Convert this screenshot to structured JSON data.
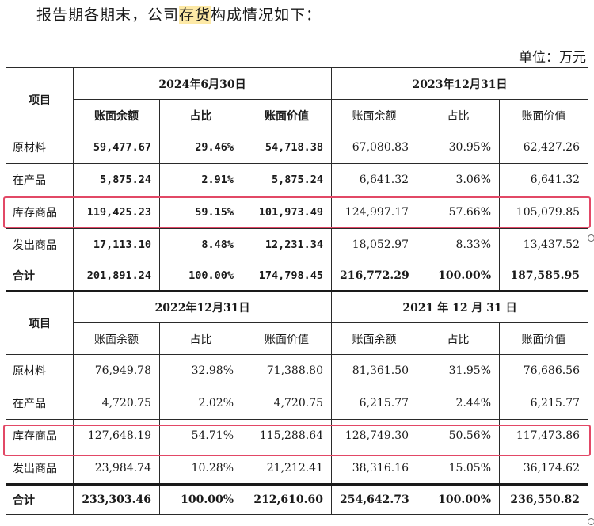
{
  "intro": {
    "before": "报告期各期末，公司",
    "highlight": "存货",
    "after": "构成情况如下："
  },
  "unit": "单位：万元",
  "label_item": "项目",
  "tables": [
    {
      "periods": [
        "2024年6月30日",
        "2023年12月31日"
      ],
      "subheaders": [
        "账面余额",
        "占比",
        "账面价值",
        "账面余额",
        "占比",
        "账面价值"
      ],
      "rows": [
        {
          "label": "原材料",
          "values": [
            "59,477.67",
            "29.46%",
            "54,718.38",
            "67,080.83",
            "30.95%",
            "62,427.26"
          ]
        },
        {
          "label": "在产品",
          "values": [
            "5,875.24",
            "2.91%",
            "5,875.24",
            "6,641.32",
            "3.06%",
            "6,641.32"
          ]
        },
        {
          "label": "库存商品",
          "values": [
            "119,425.23",
            "59.15%",
            "101,973.49",
            "124,997.17",
            "57.66%",
            "105,079.85"
          ]
        },
        {
          "label": "发出商品",
          "values": [
            "17,113.10",
            "8.48%",
            "12,231.34",
            "18,052.97",
            "8.33%",
            "13,437.52"
          ]
        },
        {
          "label": "合计",
          "values": [
            "201,891.24",
            "100.00%",
            "174,798.45",
            "216,772.29",
            "100.00%",
            "187,585.95"
          ]
        }
      ]
    },
    {
      "periods": [
        "2022年12月31日",
        "2021 年 12 月 31 日"
      ],
      "subheaders": [
        "账面余额",
        "占比",
        "账面价值",
        "账面余额",
        "占比",
        "账面价值"
      ],
      "rows": [
        {
          "label": "原材料",
          "values": [
            "76,949.78",
            "32.98%",
            "71,388.80",
            "81,361.50",
            "31.95%",
            "76,686.56"
          ]
        },
        {
          "label": "在产品",
          "values": [
            "4,720.75",
            "2.02%",
            "4,720.75",
            "6,215.77",
            "2.44%",
            "6,215.77"
          ]
        },
        {
          "label": "库存商品",
          "values": [
            "127,648.19",
            "54.71%",
            "115,288.64",
            "128,749.30",
            "50.56%",
            "117,473.86"
          ]
        },
        {
          "label": "发出商品",
          "values": [
            "23,984.74",
            "10.28%",
            "21,212.41",
            "38,316.16",
            "15.05%",
            "36,174.62"
          ]
        },
        {
          "label": "合计",
          "values": [
            "233,303.46",
            "100.00%",
            "212,610.60",
            "254,642.73",
            "100.00%",
            "236,550.82"
          ]
        }
      ]
    }
  ],
  "colors": {
    "highlight": "#fde9a6",
    "box": "#e24866"
  }
}
